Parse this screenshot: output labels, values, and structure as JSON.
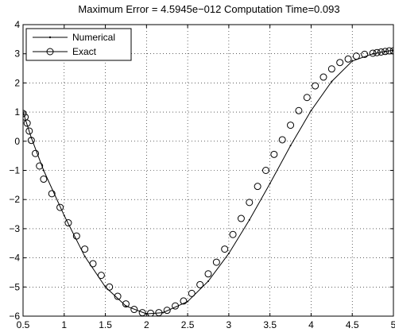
{
  "chart_data": {
    "type": "line",
    "title": "Maximum Error = 4.5945e−012    Computation Time=0.093",
    "xlabel": "",
    "ylabel": "",
    "xlim": [
      0.5,
      5
    ],
    "ylim": [
      -6,
      4
    ],
    "grid": true,
    "legend_position": "top-left",
    "x_ticks": [
      "0.5",
      "1",
      "1.5",
      "2",
      "2.5",
      "3",
      "3.5",
      "4",
      "4.5",
      "5"
    ],
    "y_ticks": [
      "4",
      "3",
      "2",
      "1",
      "0",
      "−1",
      "−2",
      "−3",
      "−4",
      "−5",
      "−6"
    ],
    "series": [
      {
        "name": "Numerical",
        "marker": "dot",
        "x": [
          0.5,
          0.6,
          0.75,
          1.0,
          1.25,
          1.5,
          1.75,
          2.0,
          2.2,
          2.5,
          2.75,
          3.0,
          3.25,
          3.5,
          3.75,
          4.0,
          4.25,
          4.5,
          4.75,
          4.9,
          5.0
        ],
        "y": [
          1.0,
          0.12,
          -1.0,
          -2.55,
          -3.95,
          -5.0,
          -5.65,
          -5.92,
          -5.88,
          -5.5,
          -4.8,
          -3.85,
          -2.7,
          -1.45,
          -0.15,
          1.05,
          2.05,
          2.75,
          3.0,
          3.08,
          3.12
        ]
      },
      {
        "name": "Exact",
        "marker": "circle",
        "x": [
          0.5,
          0.525,
          0.55,
          0.575,
          0.6,
          0.65,
          0.7,
          0.75,
          0.85,
          0.95,
          1.05,
          1.15,
          1.25,
          1.35,
          1.45,
          1.55,
          1.65,
          1.75,
          1.85,
          1.95,
          2.05,
          2.15,
          2.25,
          2.35,
          2.45,
          2.55,
          2.65,
          2.75,
          2.85,
          2.95,
          3.05,
          3.15,
          3.25,
          3.35,
          3.45,
          3.55,
          3.65,
          3.75,
          3.85,
          3.95,
          4.05,
          4.15,
          4.25,
          4.35,
          4.45,
          4.55,
          4.65,
          4.75,
          4.8,
          4.85,
          4.9,
          4.95,
          5.0
        ],
        "y": [
          0.95,
          0.83,
          0.62,
          0.35,
          0.03,
          -0.42,
          -0.85,
          -1.3,
          -1.8,
          -2.27,
          -2.8,
          -3.25,
          -3.7,
          -4.2,
          -4.6,
          -5.0,
          -5.32,
          -5.58,
          -5.77,
          -5.88,
          -5.9,
          -5.88,
          -5.8,
          -5.65,
          -5.48,
          -5.22,
          -4.92,
          -4.55,
          -4.15,
          -3.7,
          -3.2,
          -2.65,
          -2.1,
          -1.55,
          -1.0,
          -0.45,
          0.05,
          0.55,
          1.05,
          1.5,
          1.9,
          2.2,
          2.48,
          2.7,
          2.82,
          2.92,
          2.98,
          3.02,
          3.04,
          3.06,
          3.08,
          3.1,
          3.1
        ]
      }
    ]
  }
}
